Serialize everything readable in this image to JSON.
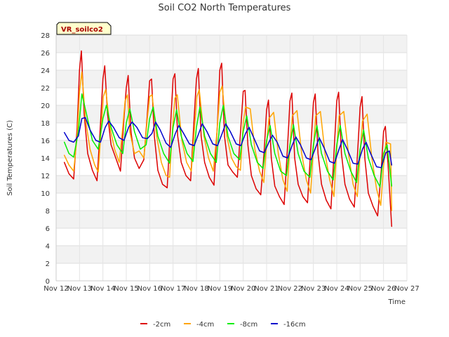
{
  "chart_data": {
    "type": "line",
    "title": "Soil CO2 North Temperatures",
    "xlabel": "Time",
    "ylabel": "Soil Temperatures (C)",
    "badge": "VR_soilco2",
    "xlim": [
      12,
      27
    ],
    "ylim": [
      0,
      28
    ],
    "x_ticks": [
      "Nov 12",
      "Nov 13",
      "Nov 14",
      "Nov 15",
      "Nov 16",
      "Nov 17",
      "Nov 18",
      "Nov 19",
      "Nov 20",
      "Nov 21",
      "Nov 22",
      "Nov 23",
      "Nov 24",
      "Nov 25",
      "Nov 26",
      "Nov 27"
    ],
    "y_ticks": [
      0,
      2,
      4,
      6,
      8,
      10,
      12,
      14,
      16,
      18,
      20,
      22,
      24,
      26,
      28
    ],
    "grid": true,
    "legend_position": "bottom",
    "series": [
      {
        "name": "-2cm",
        "color": "#dd0000",
        "x": [
          12.35,
          12.55,
          12.75,
          12.9,
          13.0,
          13.08,
          13.2,
          13.35,
          13.55,
          13.75,
          13.9,
          14.0,
          14.08,
          14.2,
          14.35,
          14.55,
          14.75,
          14.9,
          15.0,
          15.08,
          15.2,
          15.35,
          15.55,
          15.75,
          15.9,
          16.0,
          16.08,
          16.2,
          16.35,
          16.55,
          16.75,
          16.9,
          17.0,
          17.08,
          17.2,
          17.35,
          17.55,
          17.75,
          17.9,
          18.0,
          18.08,
          18.2,
          18.35,
          18.55,
          18.75,
          18.9,
          19.0,
          19.08,
          19.2,
          19.35,
          19.55,
          19.75,
          19.9,
          20.0,
          20.08,
          20.2,
          20.35,
          20.55,
          20.75,
          20.9,
          21.0,
          21.08,
          21.2,
          21.35,
          21.55,
          21.75,
          21.9,
          22.0,
          22.08,
          22.2,
          22.35,
          22.55,
          22.75,
          22.9,
          23.0,
          23.08,
          23.2,
          23.35,
          23.55,
          23.75,
          23.9,
          24.0,
          24.08,
          24.2,
          24.35,
          24.55,
          24.75,
          24.9,
          25.0,
          25.08,
          25.2,
          25.35,
          25.55,
          25.75,
          25.9,
          26.0,
          26.08,
          26.2,
          26.35
        ],
        "y": [
          13.5,
          12.2,
          11.6,
          17.5,
          24.0,
          26.2,
          19.0,
          14.5,
          12.6,
          11.4,
          18.0,
          23.0,
          24.5,
          19.0,
          15.5,
          14.0,
          12.5,
          18.5,
          22.0,
          23.4,
          17.0,
          14.0,
          12.8,
          13.8,
          19.0,
          22.8,
          23.0,
          16.5,
          12.6,
          11.0,
          10.6,
          18.0,
          23.0,
          23.6,
          16.5,
          13.5,
          12.0,
          11.4,
          18.5,
          23.0,
          24.2,
          16.5,
          13.5,
          11.8,
          10.9,
          18.0,
          24.0,
          24.8,
          16.5,
          13.2,
          12.4,
          11.8,
          17.5,
          21.6,
          21.7,
          15.5,
          12.0,
          10.5,
          9.8,
          15.0,
          19.5,
          20.6,
          14.0,
          10.8,
          9.6,
          8.7,
          15.5,
          20.5,
          21.4,
          14.0,
          11.0,
          9.6,
          8.9,
          15.5,
          20.3,
          21.3,
          14.5,
          11.0,
          9.2,
          8.2,
          15.5,
          20.5,
          21.5,
          14.5,
          11.0,
          9.3,
          8.4,
          15.0,
          19.8,
          21.0,
          14.0,
          10.0,
          8.5,
          7.4,
          12.5,
          17.0,
          17.6,
          13.0,
          6.2
        ]
      },
      {
        "name": "-4cm",
        "color": "#ffa500",
        "x": [
          12.35,
          12.55,
          12.75,
          12.9,
          13.0,
          13.1,
          13.25,
          13.45,
          13.65,
          13.8,
          13.92,
          14.02,
          14.12,
          14.3,
          14.5,
          14.7,
          14.85,
          14.95,
          15.05,
          15.15,
          15.35,
          15.55,
          15.75,
          15.9,
          16.0,
          16.1,
          16.3,
          16.5,
          16.7,
          16.85,
          16.98,
          17.08,
          17.18,
          17.38,
          17.58,
          17.78,
          17.92,
          18.02,
          18.12,
          18.32,
          18.52,
          18.72,
          18.88,
          19.0,
          19.1,
          19.3,
          19.5,
          19.7,
          19.88,
          20.0,
          20.1,
          20.3,
          20.5,
          20.7,
          20.88,
          21.0,
          21.1,
          21.3,
          21.5,
          21.7,
          21.88,
          22.0,
          22.1,
          22.3,
          22.5,
          22.7,
          22.88,
          23.0,
          23.1,
          23.3,
          23.5,
          23.7,
          23.88,
          24.0,
          24.1,
          24.3,
          24.5,
          24.7,
          24.88,
          25.0,
          25.1,
          25.3,
          25.5,
          25.7,
          25.88,
          26.0,
          26.1,
          26.3,
          26.35
        ],
        "y": [
          14.3,
          13.2,
          12.5,
          16.5,
          21.5,
          23.8,
          18.5,
          15.0,
          13.2,
          12.4,
          17.0,
          21.0,
          21.8,
          17.5,
          15.0,
          13.5,
          17.5,
          20.5,
          21.2,
          17.0,
          14.5,
          14.8,
          14.0,
          18.5,
          21.0,
          21.2,
          16.5,
          13.5,
          12.0,
          11.8,
          17.5,
          20.8,
          21.2,
          16.0,
          13.5,
          12.5,
          17.5,
          21.0,
          21.8,
          16.5,
          14.0,
          12.5,
          17.0,
          21.5,
          22.2,
          16.5,
          14.0,
          13.0,
          12.6,
          18.0,
          19.8,
          19.6,
          15.0,
          12.5,
          11.2,
          15.5,
          18.5,
          19.2,
          14.5,
          11.5,
          10.2,
          15.5,
          18.8,
          19.4,
          14.5,
          11.5,
          10.0,
          15.0,
          18.8,
          19.3,
          14.5,
          11.5,
          9.6,
          15.0,
          18.8,
          19.3,
          14.5,
          11.0,
          9.6,
          14.5,
          18.2,
          19.0,
          14.0,
          10.5,
          8.6,
          13.0,
          15.8,
          15.6,
          8.0
        ]
      },
      {
        "name": "-8cm",
        "color": "#00ee00",
        "x": [
          12.35,
          12.55,
          12.75,
          12.95,
          13.1,
          13.3,
          13.55,
          13.8,
          14.0,
          14.15,
          14.35,
          14.6,
          14.85,
          15.0,
          15.15,
          15.35,
          15.6,
          15.85,
          16.0,
          16.15,
          16.35,
          16.6,
          16.85,
          17.0,
          17.15,
          17.35,
          17.6,
          17.85,
          18.0,
          18.15,
          18.35,
          18.6,
          18.85,
          19.0,
          19.15,
          19.35,
          19.6,
          19.85,
          20.0,
          20.15,
          20.35,
          20.6,
          20.85,
          21.0,
          21.15,
          21.35,
          21.6,
          21.85,
          22.0,
          22.15,
          22.35,
          22.6,
          22.85,
          23.0,
          23.15,
          23.35,
          23.6,
          23.85,
          24.0,
          24.15,
          24.35,
          24.6,
          24.85,
          25.0,
          25.15,
          25.35,
          25.6,
          25.85,
          26.0,
          26.15,
          26.35
        ],
        "y": [
          15.8,
          14.5,
          14.1,
          17.0,
          21.3,
          19.0,
          16.0,
          15.0,
          18.5,
          20.0,
          17.5,
          15.5,
          14.5,
          18.0,
          19.6,
          17.0,
          15.0,
          15.5,
          18.5,
          19.8,
          16.5,
          14.5,
          13.4,
          17.5,
          19.5,
          16.5,
          14.5,
          13.6,
          17.5,
          19.8,
          16.5,
          14.5,
          13.5,
          18.0,
          20.0,
          16.5,
          14.5,
          13.8,
          17.0,
          18.8,
          15.5,
          13.5,
          12.8,
          16.0,
          17.7,
          14.5,
          12.5,
          12.0,
          15.5,
          17.8,
          14.5,
          12.5,
          11.8,
          15.5,
          17.7,
          14.5,
          12.5,
          11.5,
          15.5,
          17.7,
          14.5,
          12.5,
          11.2,
          15.0,
          17.2,
          14.0,
          12.0,
          10.7,
          14.5,
          15.5,
          10.8
        ]
      },
      {
        "name": "-16cm",
        "color": "#0000cc",
        "x": [
          12.35,
          12.55,
          12.75,
          12.95,
          13.1,
          13.25,
          13.45,
          13.7,
          13.9,
          14.1,
          14.25,
          14.45,
          14.7,
          14.9,
          15.1,
          15.25,
          15.45,
          15.7,
          15.9,
          16.1,
          16.25,
          16.45,
          16.7,
          16.9,
          17.1,
          17.25,
          17.45,
          17.7,
          17.9,
          18.1,
          18.25,
          18.45,
          18.7,
          18.9,
          19.1,
          19.25,
          19.45,
          19.7,
          19.9,
          20.1,
          20.25,
          20.45,
          20.7,
          20.9,
          21.1,
          21.25,
          21.45,
          21.7,
          21.9,
          22.1,
          22.25,
          22.45,
          22.7,
          22.9,
          23.1,
          23.25,
          23.45,
          23.7,
          23.9,
          24.1,
          24.25,
          24.45,
          24.7,
          24.9,
          25.1,
          25.25,
          25.45,
          25.7,
          25.9,
          26.1,
          26.25,
          26.35
        ],
        "y": [
          16.9,
          16.0,
          15.8,
          16.5,
          18.5,
          18.6,
          17.2,
          16.0,
          15.8,
          17.5,
          18.2,
          17.5,
          16.3,
          16.0,
          17.5,
          18.1,
          17.5,
          16.3,
          16.2,
          16.8,
          18.1,
          17.2,
          15.7,
          15.2,
          16.8,
          17.7,
          16.8,
          15.6,
          15.4,
          16.8,
          17.9,
          17.0,
          15.6,
          15.4,
          16.8,
          17.9,
          17.0,
          15.6,
          15.4,
          16.8,
          17.5,
          16.3,
          14.8,
          14.6,
          15.8,
          16.6,
          15.8,
          14.2,
          14.0,
          15.5,
          16.4,
          15.5,
          14.0,
          13.8,
          15.2,
          16.3,
          15.2,
          13.6,
          13.4,
          15.0,
          16.1,
          15.0,
          13.4,
          13.3,
          15.0,
          15.8,
          14.5,
          13.0,
          12.9,
          14.6,
          14.8,
          13.2
        ]
      }
    ]
  }
}
